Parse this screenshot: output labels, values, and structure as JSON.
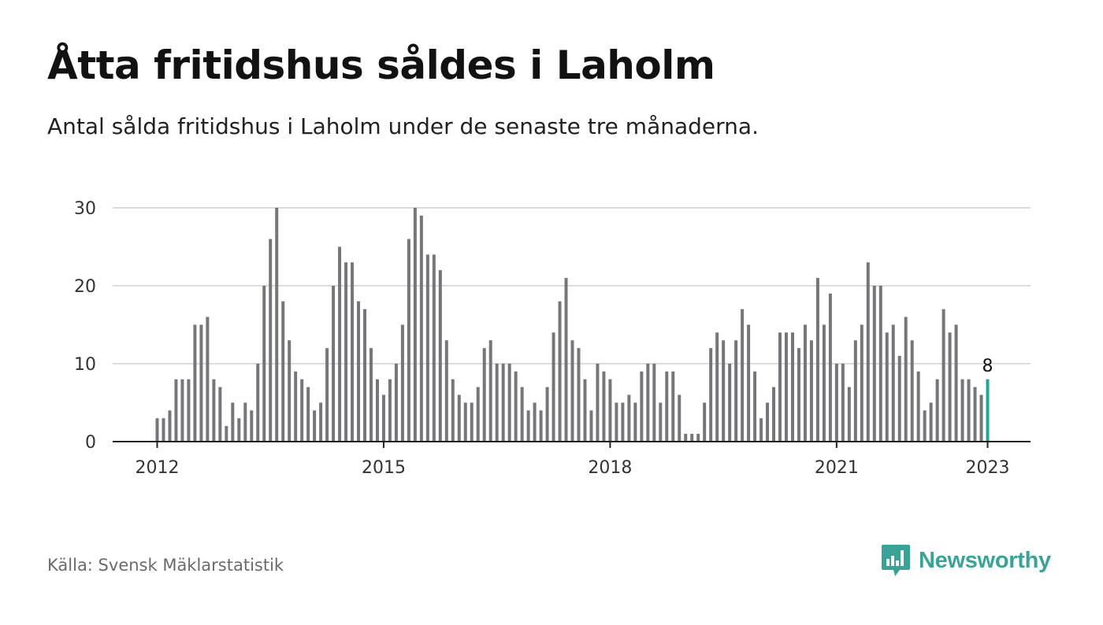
{
  "title": "Åtta fritidshus såldes i Laholm",
  "subtitle": "Antal sålda fritidshus i Laholm under de senaste tre månaderna.",
  "source": "Källa: Svensk Mäklarstatistik",
  "brand": {
    "name": "Newsworthy",
    "icon": "newsworthy-logo-icon",
    "color": "#3aa397"
  },
  "chart_data": {
    "type": "bar",
    "title": "",
    "xlabel": "",
    "ylabel": "",
    "ylim": [
      0,
      30
    ],
    "yticks": [
      0,
      10,
      20,
      30
    ],
    "grid": true,
    "x_tick_labels": [
      "2012",
      "2015",
      "2018",
      "2021",
      "2023"
    ],
    "x_tick_index": [
      0,
      36,
      72,
      108,
      132
    ],
    "x_start": "2012-01",
    "x_end": "2023-01",
    "bar_color": "#76757a",
    "highlight_color": "#23a597",
    "highlight_label": "8",
    "values": [
      3,
      3,
      4,
      8,
      8,
      8,
      15,
      15,
      16,
      8,
      7,
      2,
      5,
      3,
      5,
      4,
      10,
      20,
      26,
      30,
      18,
      13,
      9,
      8,
      7,
      4,
      5,
      12,
      20,
      25,
      23,
      23,
      18,
      17,
      12,
      8,
      6,
      8,
      10,
      15,
      26,
      30,
      29,
      24,
      24,
      22,
      13,
      8,
      6,
      5,
      5,
      7,
      12,
      13,
      10,
      10,
      10,
      9,
      7,
      4,
      5,
      4,
      7,
      14,
      18,
      21,
      13,
      12,
      8,
      4,
      10,
      9,
      8,
      5,
      5,
      6,
      5,
      9,
      10,
      10,
      5,
      9,
      9,
      6,
      1,
      1,
      1,
      5,
      12,
      14,
      13,
      10,
      13,
      17,
      15,
      9,
      3,
      5,
      7,
      14,
      14,
      14,
      12,
      15,
      13,
      21,
      15,
      19,
      10,
      10,
      7,
      13,
      15,
      23,
      20,
      20,
      14,
      15,
      11,
      16,
      13,
      9,
      4,
      5,
      8,
      17,
      14,
      15,
      8,
      8,
      7,
      6,
      8
    ]
  }
}
